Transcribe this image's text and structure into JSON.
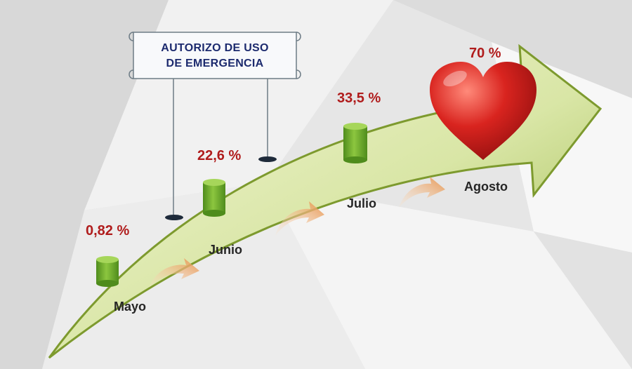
{
  "banner": {
    "line1": "AUTORIZO DE USO",
    "line2": "DE EMERGENCIA"
  },
  "milestones": [
    {
      "month": "Mayo",
      "percent": "0,82 %"
    },
    {
      "month": "Junio",
      "percent": "22,6 %"
    },
    {
      "month": "Julio",
      "percent": "33,5 %"
    },
    {
      "month": "Agosto",
      "percent": "70 %"
    }
  ],
  "colors": {
    "arrow_light": "#eef3c8",
    "arrow_dark": "#8aa53c",
    "cylinder": "#6aaa2a",
    "percent_text": "#b01c1c",
    "heart": "#c91a1a",
    "curved_arrow": "#e9a15c",
    "banner_text": "#1c2a6e"
  },
  "icons": [
    "heart-icon",
    "cylinder-icon",
    "curved-arrow-icon",
    "scroll-banner-icon"
  ]
}
